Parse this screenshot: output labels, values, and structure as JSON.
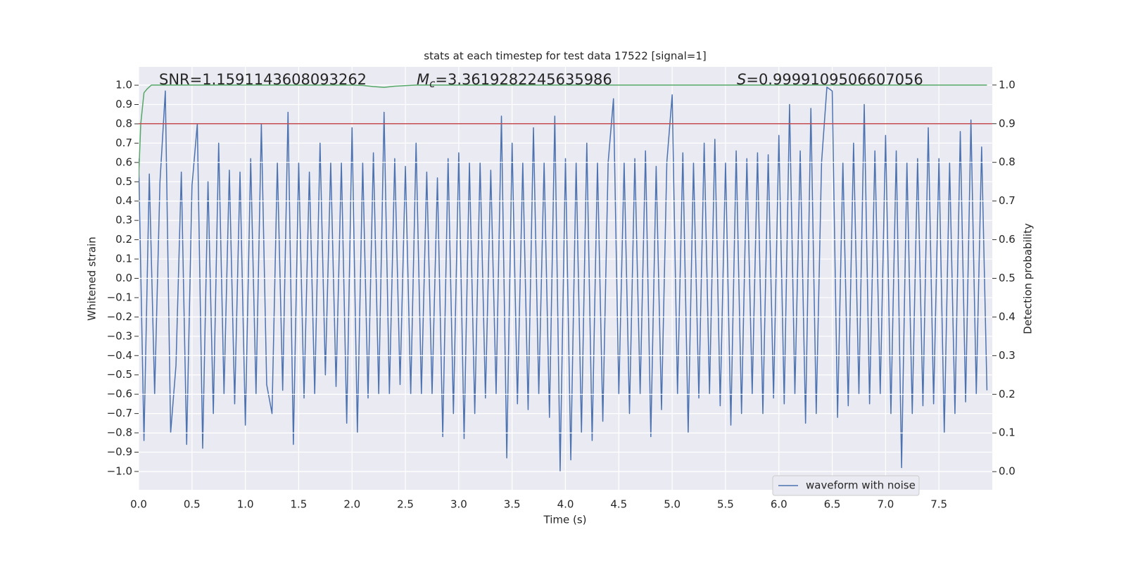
{
  "chart_data": {
    "type": "line",
    "title": "stats at each timestep for test data 17522 [signal=1]",
    "xlabel": "Time (s)",
    "ylabel": "Whitened strain",
    "y2label": "Detection probability",
    "annotations": [
      {
        "text": "SNR=1.1591143608093262"
      },
      {
        "symbol": "M",
        "subscript": "c",
        "text": "=3.3619282245635986"
      },
      {
        "symbol": "S",
        "text": "=0.9999109506607056"
      }
    ],
    "xlim": [
      0,
      8
    ],
    "xticks": [
      {
        "value": 0,
        "label": "0.0"
      },
      {
        "value": 0.5,
        "label": "0.5"
      },
      {
        "value": 1,
        "label": "1.0"
      },
      {
        "value": 1.5,
        "label": "1.5"
      },
      {
        "value": 2,
        "label": "2.0"
      },
      {
        "value": 2.5,
        "label": "2.5"
      },
      {
        "value": 3,
        "label": "3.0"
      },
      {
        "value": 3.5,
        "label": "3.5"
      },
      {
        "value": 4,
        "label": "4.0"
      },
      {
        "value": 4.5,
        "label": "4.5"
      },
      {
        "value": 5,
        "label": "5.0"
      },
      {
        "value": 5.5,
        "label": "5.5"
      },
      {
        "value": 6,
        "label": "6.0"
      },
      {
        "value": 6.5,
        "label": "6.5"
      },
      {
        "value": 7,
        "label": "7.0"
      },
      {
        "value": 7.5,
        "label": "7.5"
      }
    ],
    "ylim": [
      -1.095,
      1.095
    ],
    "yticks": [
      {
        "value": -1,
        "label": "−1.0"
      },
      {
        "value": -0.9,
        "label": "−0.9"
      },
      {
        "value": -0.8,
        "label": "−0.8"
      },
      {
        "value": -0.7,
        "label": "−0.7"
      },
      {
        "value": -0.6,
        "label": "−0.6"
      },
      {
        "value": -0.5,
        "label": "−0.5"
      },
      {
        "value": -0.4,
        "label": "−0.4"
      },
      {
        "value": -0.3,
        "label": "−0.3"
      },
      {
        "value": -0.2,
        "label": "−0.2"
      },
      {
        "value": -0.1,
        "label": "−0.1"
      },
      {
        "value": 0,
        "label": "0.0"
      },
      {
        "value": 0.1,
        "label": "0.1"
      },
      {
        "value": 0.2,
        "label": "0.2"
      },
      {
        "value": 0.3,
        "label": "0.3"
      },
      {
        "value": 0.4,
        "label": "0.4"
      },
      {
        "value": 0.5,
        "label": "0.5"
      },
      {
        "value": 0.6,
        "label": "0.6"
      },
      {
        "value": 0.7,
        "label": "0.7"
      },
      {
        "value": 0.8,
        "label": "0.8"
      },
      {
        "value": 0.9,
        "label": "0.9"
      },
      {
        "value": 1,
        "label": "1.0"
      }
    ],
    "y2lim": [
      -0.047,
      1.047
    ],
    "y2ticks": [
      {
        "value": 0,
        "label": "0.0"
      },
      {
        "value": 0.1,
        "label": "0.1"
      },
      {
        "value": 0.2,
        "label": "0.2"
      },
      {
        "value": 0.3,
        "label": "0.3"
      },
      {
        "value": 0.4,
        "label": "0.4"
      },
      {
        "value": 0.5,
        "label": "0.5"
      },
      {
        "value": 0.6,
        "label": "0.6"
      },
      {
        "value": 0.7,
        "label": "0.7"
      },
      {
        "value": 0.8,
        "label": "0.8"
      },
      {
        "value": 0.9,
        "label": "0.9"
      },
      {
        "value": 1,
        "label": "1.0"
      }
    ],
    "grid": true,
    "legend": "lower right",
    "hlines": [
      {
        "value": 0.9,
        "axis": "y2",
        "color": "#c44e52"
      }
    ],
    "series": [
      {
        "name": "waveform with noise",
        "color": "#4c72b0",
        "x": [
          0,
          0.05,
          0.1,
          0.15,
          0.2,
          0.25,
          0.3,
          0.35,
          0.4,
          0.45,
          0.5,
          0.55,
          0.6,
          0.65,
          0.7,
          0.75,
          0.8,
          0.85,
          0.9,
          0.95,
          1,
          1.05,
          1.1,
          1.15,
          1.2,
          1.25,
          1.3,
          1.35,
          1.4,
          1.45,
          1.5,
          1.55,
          1.6,
          1.65,
          1.7,
          1.75,
          1.8,
          1.85,
          1.9,
          1.95,
          2,
          2.05,
          2.1,
          2.15,
          2.2,
          2.25,
          2.3,
          2.35,
          2.4,
          2.45,
          2.5,
          2.55,
          2.6,
          2.65,
          2.7,
          2.75,
          2.8,
          2.85,
          2.9,
          2.95,
          3,
          3.05,
          3.1,
          3.15,
          3.2,
          3.25,
          3.3,
          3.35,
          3.4,
          3.45,
          3.5,
          3.55,
          3.6,
          3.65,
          3.7,
          3.75,
          3.8,
          3.85,
          3.9,
          3.95,
          4,
          4.05,
          4.1,
          4.15,
          4.2,
          4.25,
          4.3,
          4.35,
          4.4,
          4.45,
          4.5,
          4.55,
          4.6,
          4.65,
          4.7,
          4.75,
          4.8,
          4.85,
          4.9,
          4.95,
          5,
          5.05,
          5.1,
          5.15,
          5.2,
          5.25,
          5.3,
          5.35,
          5.4,
          5.45,
          5.5,
          5.55,
          5.6,
          5.65,
          5.7,
          5.75,
          5.8,
          5.85,
          5.9,
          5.95,
          6,
          6.05,
          6.1,
          6.15,
          6.2,
          6.25,
          6.3,
          6.35,
          6.4,
          6.45,
          6.5,
          6.55,
          6.6,
          6.65,
          6.7,
          6.75,
          6.8,
          6.85,
          6.9,
          6.95,
          7,
          7.05,
          7.1,
          7.15,
          7.2,
          7.25,
          7.3,
          7.35,
          7.4,
          7.45,
          7.5,
          7.55,
          7.6,
          7.65,
          7.7,
          7.75,
          7.8,
          7.85,
          7.9,
          7.95
        ],
        "values": [
          0.62,
          -0.84,
          0.54,
          -0.6,
          0.5,
          0.97,
          -0.8,
          -0.45,
          0.55,
          -0.86,
          0.48,
          0.8,
          -0.88,
          0.5,
          -0.7,
          0.7,
          -0.6,
          0.56,
          -0.65,
          0.55,
          -0.76,
          0.62,
          -0.6,
          0.8,
          -0.55,
          -0.7,
          0.6,
          -0.58,
          0.86,
          -0.86,
          0.6,
          -0.62,
          0.55,
          -0.6,
          0.7,
          -0.5,
          0.6,
          -0.56,
          0.6,
          -0.75,
          0.78,
          -0.8,
          0.6,
          -0.62,
          0.65,
          -0.6,
          0.86,
          -0.6,
          0.62,
          -0.55,
          0.58,
          -0.6,
          0.7,
          -0.6,
          0.55,
          -0.6,
          0.52,
          -0.82,
          0.62,
          -0.7,
          0.65,
          -0.83,
          0.6,
          -0.7,
          0.6,
          -0.62,
          0.56,
          -0.6,
          0.84,
          -0.93,
          0.7,
          -0.65,
          0.6,
          -0.68,
          0.78,
          -0.6,
          0.6,
          -0.72,
          0.84,
          -1.0,
          0.62,
          -0.94,
          0.6,
          -0.8,
          0.7,
          -0.84,
          0.6,
          -0.74,
          0.6,
          0.93,
          -0.6,
          0.6,
          -0.7,
          0.62,
          -0.6,
          0.66,
          -0.82,
          0.58,
          -0.68,
          0.6,
          0.95,
          -0.6,
          0.65,
          -0.8,
          0.6,
          -0.62,
          0.7,
          -0.6,
          0.72,
          -0.66,
          0.6,
          -0.76,
          0.66,
          -0.7,
          0.62,
          -0.6,
          0.65,
          -0.7,
          0.64,
          -0.62,
          0.74,
          -0.65,
          0.9,
          -0.6,
          0.66,
          -0.75,
          0.88,
          -0.7,
          0.6,
          0.99,
          0.97,
          -0.72,
          0.6,
          -0.66,
          0.7,
          -0.6,
          0.9,
          -0.65,
          0.66,
          -0.6,
          0.74,
          -0.7,
          0.66,
          -0.98,
          0.6,
          -0.7,
          0.62,
          -0.66,
          0.78,
          -0.65,
          0.62,
          -0.8,
          0.6,
          -0.7,
          0.76,
          -0.64,
          0.82,
          -0.6,
          0.68,
          -0.58
        ]
      },
      {
        "color": "#55a868",
        "axis": "y2",
        "x": [
          0,
          0.02,
          0.05,
          0.08,
          0.12,
          0.5,
          1,
          1.5,
          2,
          2.1,
          2.2,
          2.3,
          2.4,
          2.6,
          3,
          4,
          5,
          6,
          7,
          7.95
        ],
        "values": [
          0.76,
          0.9,
          0.98,
          0.99,
          1.0,
          1.0,
          1.0,
          1.0,
          1.0,
          0.999,
          0.996,
          0.994,
          0.997,
          1.0,
          1.0,
          1.0,
          1.0,
          1.0,
          1.0,
          1.0
        ]
      }
    ]
  }
}
